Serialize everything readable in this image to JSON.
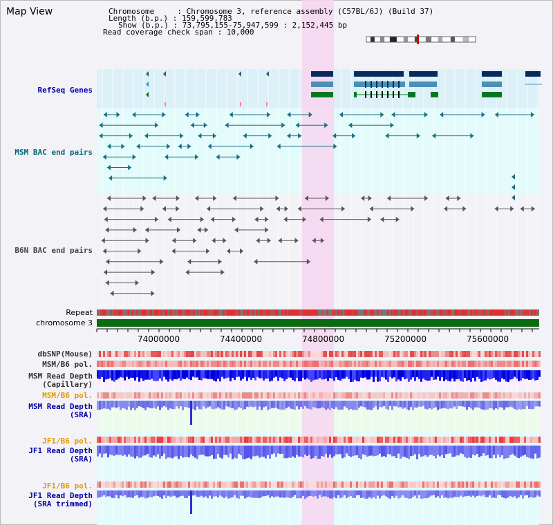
{
  "header": {
    "title": "Map View",
    "info_lines": [
      "Chromosome     : Chromosome 3, reference assembly (C57BL/6J) (Build 37)",
      "Length (b.p.) : 159,599,783",
      "Show (b.p.) : 73,795,155-75,947,599 : 2,152,445 bp",
      "Read coverage check span : 10,000"
    ]
  },
  "tracks": {
    "refseq": "RefSeq Genes",
    "msm_bac": "MSM BAC end pairs",
    "b6n_bac": "B6N BAC end pairs",
    "repeat": "Repeat",
    "chromosome": "chromosome 3",
    "dbsnp": "dbSNP(Mouse)",
    "msm_b6_pol": "MSM/B6 pol.",
    "msm_depth_cap_1": "MSM Read Depth",
    "msm_depth_cap_2": "(Capillary)",
    "msm_b6_pol_orange": "MSM/B6 pol.",
    "msm_depth_sra_1": "MSM Read Depth",
    "msm_depth_sra_2": "(SRA)",
    "jf1_b6_pol_1": "JF1/B6 pol.",
    "jf1_depth_sra_1": "JF1 Read Depth",
    "jf1_depth_sra_2": "(SRA)",
    "jf1_b6_pol_2": "JF1/B6 pol.",
    "jf1_depth_trim_1": "JF1 Read Depth",
    "jf1_depth_trim_2": "(SRA trimmed)"
  },
  "axis": {
    "ticks": [
      "74000000",
      "74400000",
      "74800000",
      "75200000",
      "75600000"
    ]
  },
  "colors": {
    "refseq_label": "#0000aa",
    "msm_label": "#006677",
    "b6n_label": "#333333",
    "orange_label": "#e69500",
    "blue_label": "#0000aa",
    "highlight": "#f7d6f0"
  }
}
